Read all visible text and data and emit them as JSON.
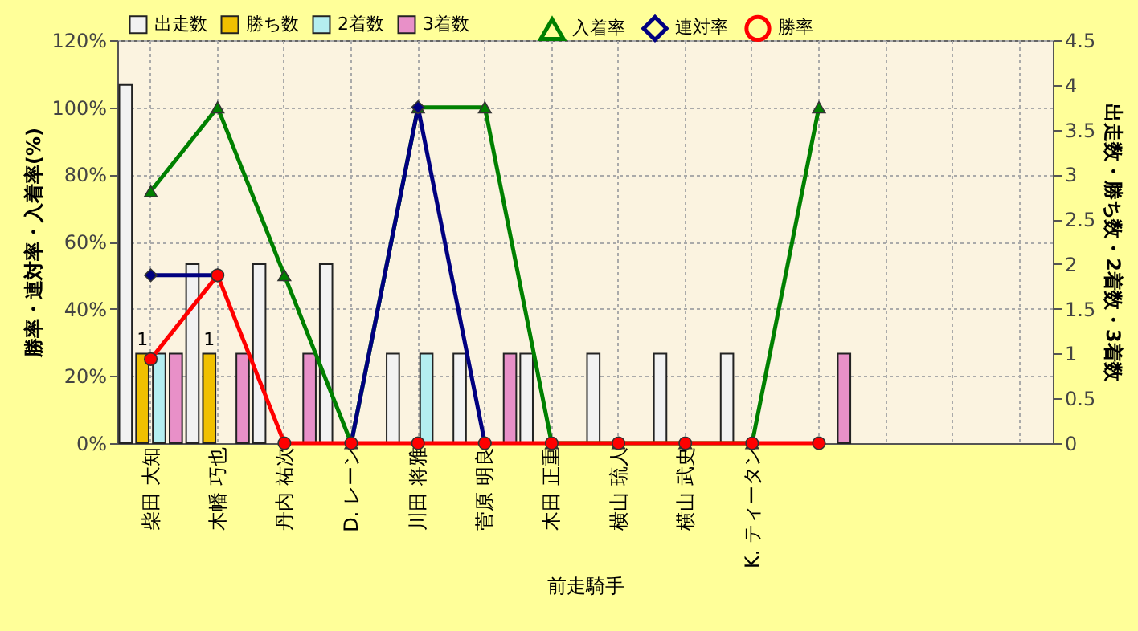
{
  "chart_data": {
    "type": "bar",
    "xlabel": "前走騎手",
    "ylabel": "勝率・連対率・入着率(%)",
    "y2label": "出走数・勝ち数・2着数・3着数",
    "categories": [
      "柴田 大知",
      "木幡 巧也",
      "丹内 祐次",
      "D. レーン",
      "川田 将雅",
      "菅原 明良",
      "木田 正重",
      "横山 琉人",
      "横山 武史",
      "K. ティータン",
      null,
      null,
      null,
      null
    ],
    "series": [
      {
        "name": "出走数",
        "axis": "y2",
        "color": "#f2f2f2",
        "values": [
          4,
          2,
          2,
          2,
          1,
          1,
          1,
          1,
          1,
          1,
          0,
          null,
          null,
          null
        ]
      },
      {
        "name": "勝ち数",
        "axis": "y2",
        "color": "#f0c000",
        "values": [
          1,
          1,
          0,
          0,
          0,
          0,
          0,
          0,
          0,
          0,
          0,
          null,
          null,
          null
        ],
        "value_labels": [
          "1",
          "1",
          null,
          null,
          null,
          null,
          null,
          null,
          null,
          null,
          null,
          null,
          null,
          null
        ]
      },
      {
        "name": "2着数",
        "axis": "y2",
        "color": "#b4eef0",
        "values": [
          1,
          0,
          0,
          0,
          1,
          0,
          0,
          0,
          0,
          0,
          0,
          null,
          null,
          null
        ]
      },
      {
        "name": "3着数",
        "axis": "y2",
        "color": "#e890c8",
        "values": [
          1,
          1,
          1,
          0,
          0,
          1,
          0,
          0,
          0,
          0,
          1,
          null,
          null,
          null
        ]
      },
      {
        "name": "入着率",
        "type": "line",
        "marker": "triangle",
        "color": "#008000",
        "values": [
          75,
          100,
          50,
          0,
          100,
          100,
          0,
          0,
          0,
          0,
          100,
          null,
          null,
          null
        ]
      },
      {
        "name": "連対率",
        "type": "line",
        "marker": "diamond",
        "color": "#000080",
        "values": [
          50,
          50,
          null,
          0,
          100,
          0,
          null,
          null,
          null,
          null,
          null,
          null,
          null,
          null
        ]
      },
      {
        "name": "勝率",
        "type": "line",
        "marker": "circle",
        "color": "#ff0000",
        "values": [
          25,
          50,
          0,
          0,
          0,
          0,
          0,
          0,
          0,
          0,
          0,
          null,
          null,
          null
        ]
      }
    ],
    "ylim": [
      0,
      120
    ],
    "yticks": [
      {
        "value": 0,
        "label": "0%"
      },
      {
        "value": 20,
        "label": "20%"
      },
      {
        "value": 40,
        "label": "40%"
      },
      {
        "value": 60,
        "label": "60%"
      },
      {
        "value": 80,
        "label": "80%"
      },
      {
        "value": 100,
        "label": "100%"
      },
      {
        "value": 120,
        "label": "120%"
      }
    ],
    "y2lim": [
      0,
      4.5
    ],
    "y2ticks": [
      0,
      0.5,
      1,
      1.5,
      2,
      2.5,
      3,
      3.5,
      4,
      4.5
    ],
    "grid": true,
    "legend": "top"
  }
}
